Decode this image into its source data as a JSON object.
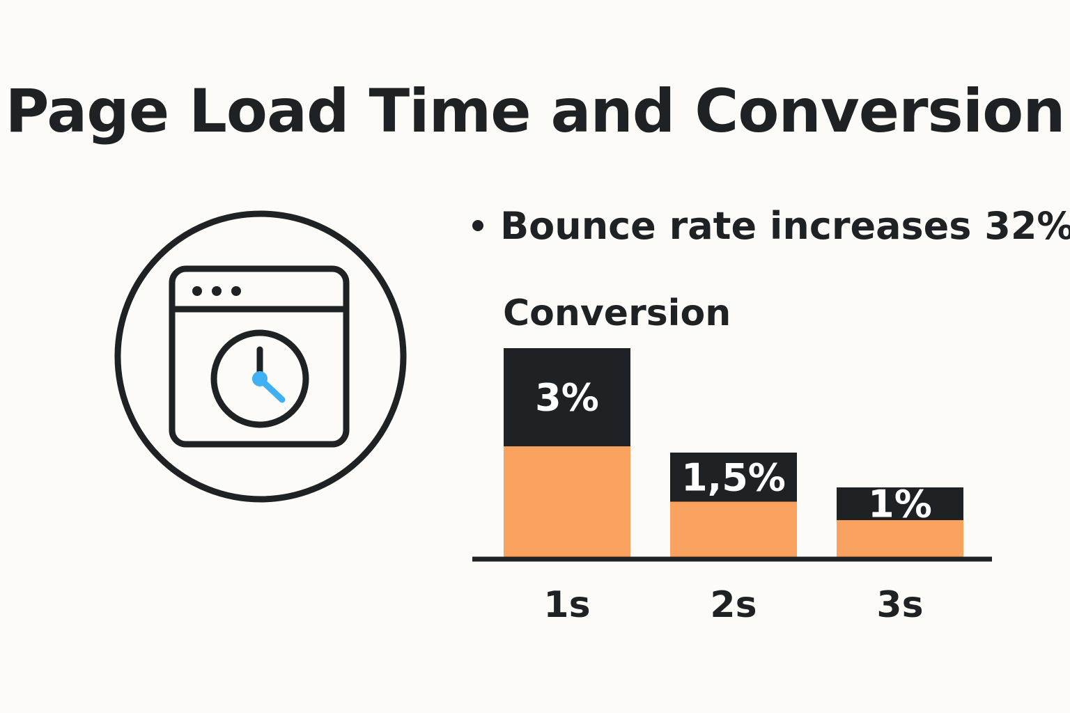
{
  "title": "Page Load Time and Conversion",
  "bullet": "Bounce rate increases 32%",
  "colors": {
    "bar_top": "#1f2224",
    "bar_bottom": "#f9a15f",
    "clock_hand_accent": "#3fb0f2",
    "ink": "#1f2224",
    "background": "#fcfbf7"
  },
  "illustration": {
    "icons": [
      "browser-window-icon",
      "clock-icon"
    ]
  },
  "chart_data": {
    "type": "bar",
    "ylabel": "Conversion",
    "categories": [
      "1s",
      "2s",
      "3s"
    ],
    "values": [
      3,
      1.5,
      1
    ],
    "value_labels": [
      "3%",
      "1,5%",
      "1%"
    ],
    "xlabel": "",
    "grid": false,
    "legend": "none"
  }
}
